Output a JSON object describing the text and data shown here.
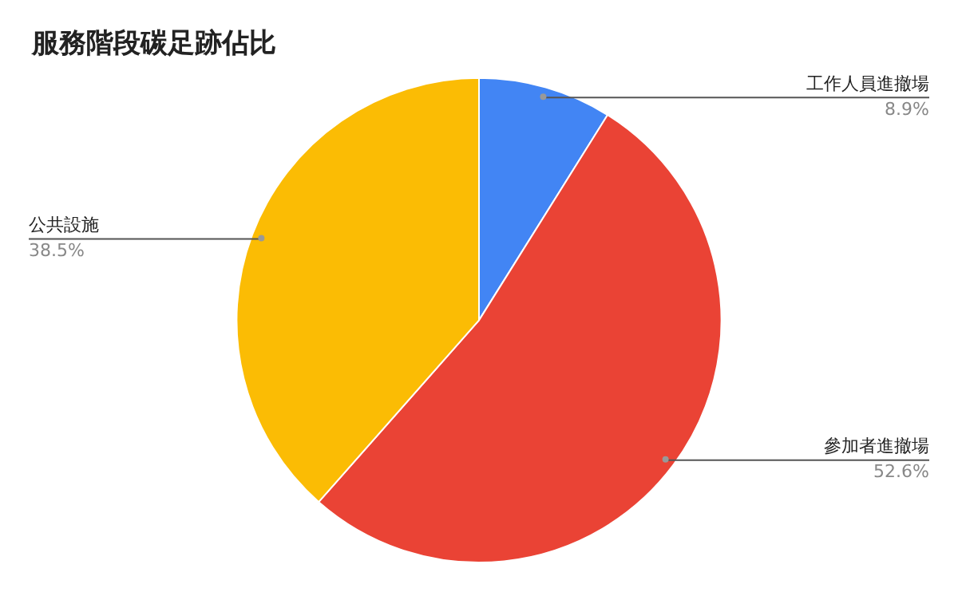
{
  "chart_data": {
    "type": "pie",
    "title": "服務階段碳足跡佔比",
    "categories": [
      "工作人員進撤場",
      "參加者進撤場",
      "公共設施"
    ],
    "values": [
      8.9,
      52.6,
      38.5
    ],
    "colors": [
      "#4285f4",
      "#ea4335",
      "#fbbc04"
    ],
    "value_labels": [
      "8.9%",
      "52.6%",
      "38.5%"
    ],
    "legend": false
  }
}
